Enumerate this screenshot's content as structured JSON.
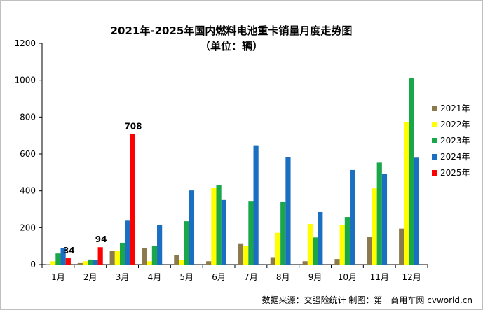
{
  "chart_data": {
    "type": "bar",
    "title": "2021年-2025年国内燃料电池重卡销量月度走势图",
    "subtitle": "（单位：辆）",
    "categories": [
      "1月",
      "2月",
      "3月",
      "4月",
      "5月",
      "6月",
      "7月",
      "8月",
      "9月",
      "10月",
      "11月",
      "12月"
    ],
    "ylim": [
      0,
      1200
    ],
    "yticks": [
      0,
      200,
      400,
      600,
      800,
      1000,
      1200
    ],
    "legend_position": "right",
    "grid": false,
    "series": [
      {
        "name": "2021年",
        "color": "#8c7a4f",
        "values": [
          2,
          8,
          75,
          90,
          50,
          18,
          115,
          40,
          18,
          30,
          150,
          195
        ]
      },
      {
        "name": "2022年",
        "color": "#ffff00",
        "values": [
          18,
          18,
          75,
          18,
          25,
          418,
          100,
          172,
          220,
          215,
          413,
          772
        ]
      },
      {
        "name": "2023年",
        "color": "#1aa74a",
        "values": [
          60,
          27,
          118,
          100,
          235,
          430,
          345,
          342,
          147,
          258,
          553,
          1010
        ]
      },
      {
        "name": "2024年",
        "color": "#1b6fc2",
        "values": [
          90,
          25,
          238,
          213,
          402,
          350,
          647,
          583,
          285,
          513,
          492,
          580
        ]
      },
      {
        "name": "2025年",
        "color": "#ff0000",
        "values": [
          34,
          94,
          708,
          null,
          null,
          null,
          null,
          null,
          null,
          null,
          null,
          null
        ]
      }
    ],
    "data_labels": [
      {
        "series": "2025年",
        "category": "1月",
        "text": "34"
      },
      {
        "series": "2025年",
        "category": "2月",
        "text": "94"
      },
      {
        "series": "2025年",
        "category": "3月",
        "text": "708"
      }
    ]
  },
  "source": "数据来源：交强险统计  制图：第一商用车网 cvworld.cn"
}
